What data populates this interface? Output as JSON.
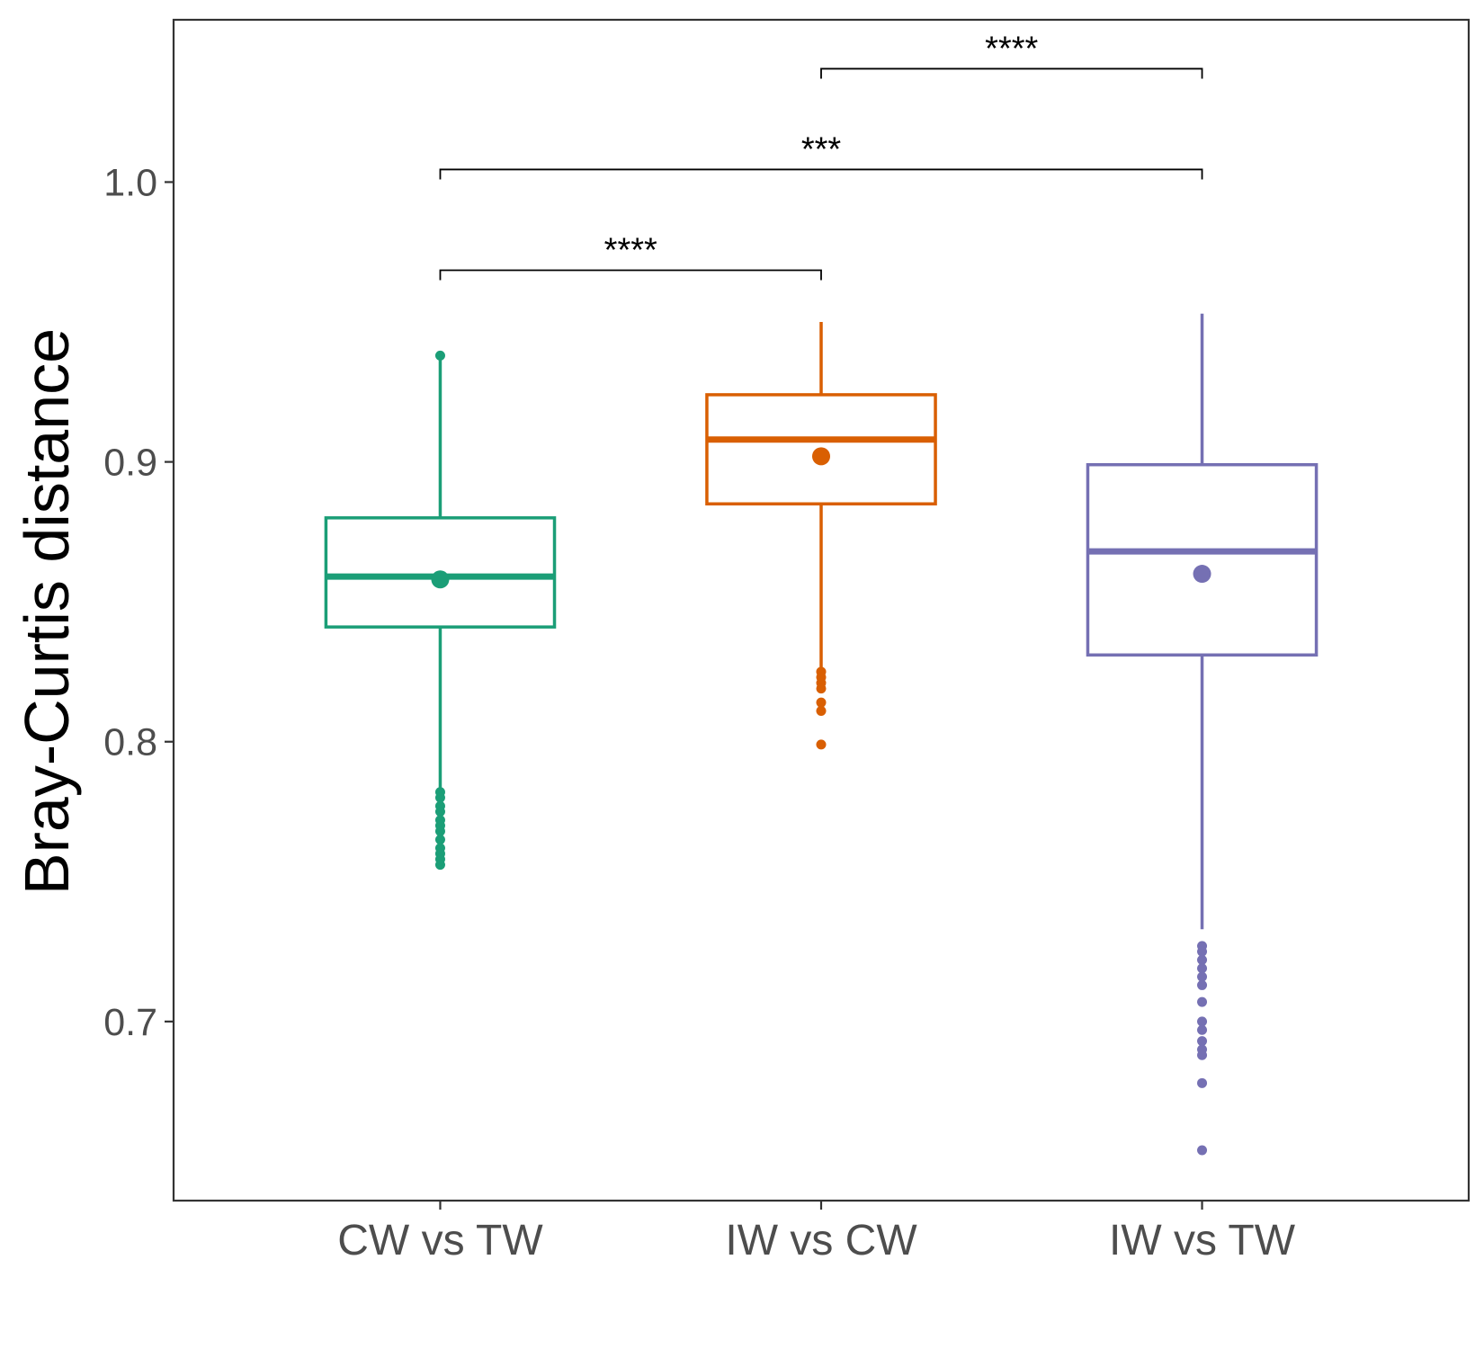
{
  "chart_data": {
    "type": "box",
    "title": "",
    "xlabel": "",
    "ylabel": "Bray-Curtis distance",
    "ylim": [
      0.636,
      1.058
    ],
    "yticks": [
      0.7,
      0.8,
      0.9,
      1.0
    ],
    "ytick_labels": [
      "0.7",
      "0.8",
      "0.9",
      "1.0"
    ],
    "grid": false,
    "legend": "none",
    "categories": [
      "CW vs TW",
      "IW vs CW",
      "IW vs TW"
    ],
    "boxes": [
      {
        "category": "CW vs TW",
        "color": "#1b9e77",
        "q1": 0.841,
        "median": 0.859,
        "q3": 0.88,
        "whisker_low": 0.783,
        "whisker_high": 0.938,
        "mean": 0.858,
        "outliers": [
          0.938,
          0.782,
          0.78,
          0.777,
          0.775,
          0.772,
          0.77,
          0.768,
          0.765,
          0.762,
          0.76,
          0.758,
          0.756
        ]
      },
      {
        "category": "IW vs CW",
        "color": "#d95f02",
        "q1": 0.885,
        "median": 0.908,
        "q3": 0.924,
        "whisker_low": 0.826,
        "whisker_high": 0.95,
        "mean": 0.902,
        "outliers": [
          0.825,
          0.823,
          0.821,
          0.819,
          0.814,
          0.811,
          0.799
        ]
      },
      {
        "category": "IW vs TW",
        "color": "#7570b3",
        "q1": 0.831,
        "median": 0.868,
        "q3": 0.899,
        "whisker_low": 0.733,
        "whisker_high": 0.953,
        "mean": 0.86,
        "outliers": [
          0.727,
          0.725,
          0.722,
          0.719,
          0.716,
          0.713,
          0.707,
          0.7,
          0.697,
          0.693,
          0.69,
          0.688,
          0.678,
          0.654
        ]
      }
    ],
    "significance": [
      {
        "from": "CW vs TW",
        "to": "IW vs CW",
        "y": 0.9685,
        "label": "****"
      },
      {
        "from": "CW vs TW",
        "to": "IW vs TW",
        "y": 1.0045,
        "label": "***"
      },
      {
        "from": "IW vs CW",
        "to": "IW vs TW",
        "y": 1.0405,
        "label": "****"
      }
    ]
  }
}
